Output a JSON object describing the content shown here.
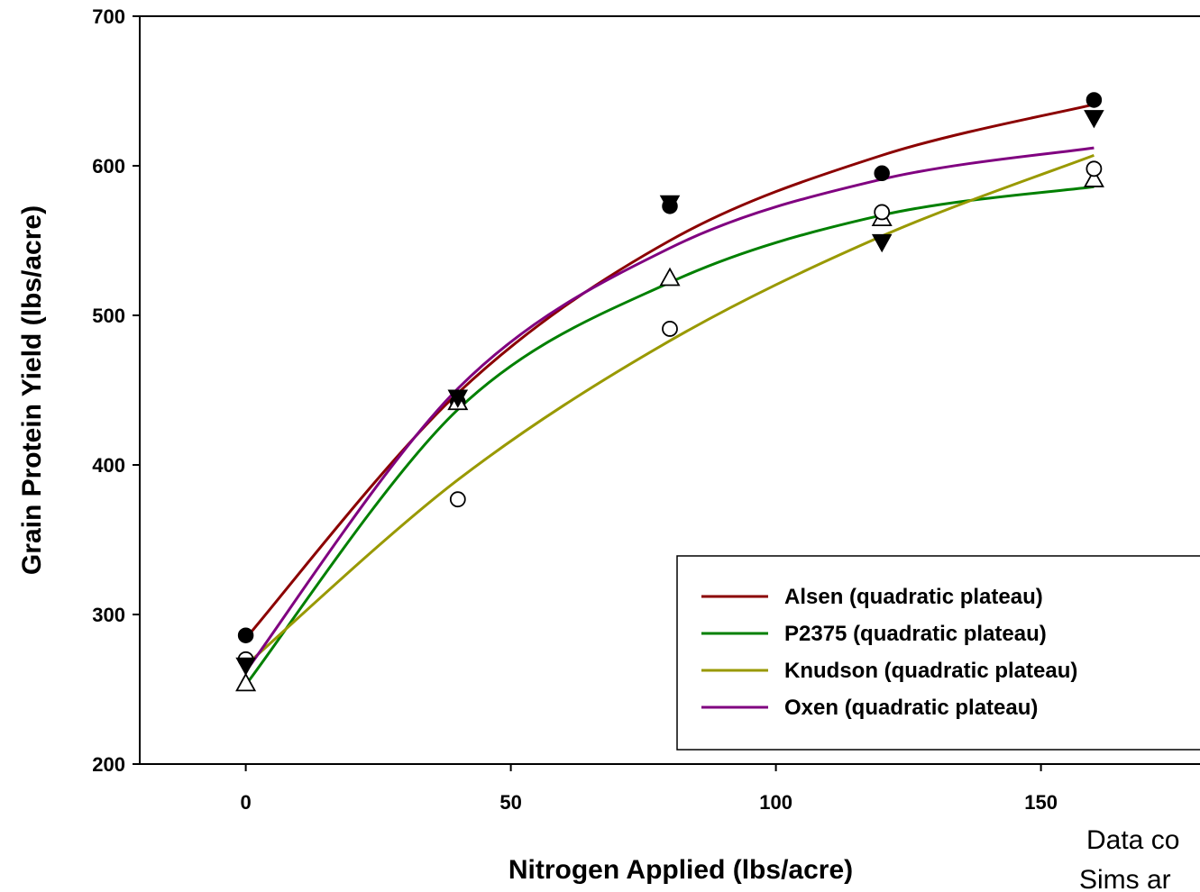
{
  "chart_data": {
    "type": "scatter",
    "title": "",
    "xlabel": "Nitrogen Applied (lbs/acre)",
    "ylabel": "Grain Protein Yield (lbs/acre)",
    "xlim": [
      -20,
      180
    ],
    "ylim": [
      200,
      700
    ],
    "x_ticks": [
      0,
      50,
      100,
      150
    ],
    "y_ticks": [
      200,
      300,
      400,
      500,
      600,
      700
    ],
    "grid": false,
    "legend_position": "bottom-right",
    "x": [
      0,
      40,
      80,
      120,
      160
    ],
    "series": [
      {
        "name": "Alsen (quadratic plateau)",
        "color": "#8B0000",
        "marker": "filled-circle",
        "points": [
          286,
          442,
          573,
          595,
          644
        ],
        "fit": [
          284,
          448,
          550,
          607,
          641
        ]
      },
      {
        "name": "P2375 (quadratic plateau)",
        "color": "#008000",
        "marker": "open-triangle",
        "points": [
          254,
          442,
          525,
          565,
          591
        ],
        "fit": [
          253,
          437,
          522,
          567,
          586
        ]
      },
      {
        "name": "Knudson (quadratic plateau)",
        "color": "#999900",
        "marker": "open-circle",
        "points": [
          270,
          377,
          491,
          569,
          598
        ],
        "fit": [
          266,
          390,
          483,
          553,
          607
        ]
      },
      {
        "name": "Oxen (quadratic plateau)",
        "color": "#800080",
        "marker": "filled-triangle-down",
        "points": [
          266,
          445,
          575,
          549,
          632
        ],
        "fit": [
          262,
          451,
          545,
          591,
          612
        ]
      }
    ],
    "annotation": [
      "Data co",
      "Sims ar"
    ]
  }
}
